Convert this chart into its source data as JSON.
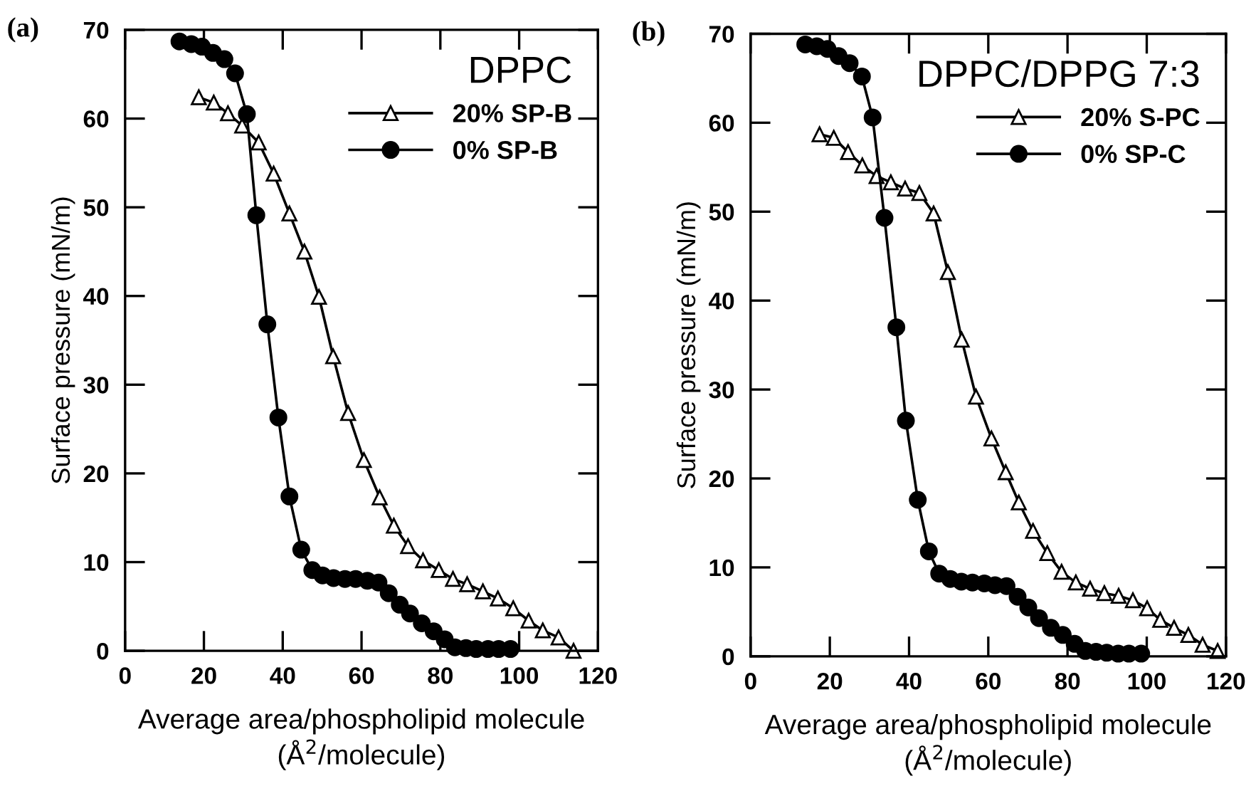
{
  "chart_data": [
    {
      "type": "line",
      "xlabel": "Average area/phospholipid molecule\n(Å$^{2}$/molecule)",
      "ylabel": "Surface pressure (mN/m)",
      "legend_title": "DPPC",
      "legend": "top right",
      "annotations": [
        "(a)"
      ],
      "xlim": [
        0,
        120
      ],
      "xticks": [
        0,
        20,
        40,
        60,
        80,
        100,
        120
      ],
      "ylim": [
        0,
        70
      ],
      "yticks": [
        0,
        10,
        20,
        30,
        40,
        50,
        60,
        70
      ],
      "grid": false,
      "line_style": "solid",
      "series": [
        {
          "name": "20% SP-B",
          "color": "#000000",
          "marker": "triangle",
          "x": [
            18.7,
            22.5,
            26.1,
            29.7,
            33.9,
            37.7,
            41.7,
            45.5,
            49.2,
            52.8,
            56.6,
            60.6,
            64.6,
            68.2,
            71.8,
            75.6,
            79.6,
            83.2,
            86.8,
            90.8,
            94.6,
            98.5,
            102.4,
            106.0,
            110.0,
            113.8
          ],
          "values": [
            62.4,
            61.8,
            60.6,
            59.2,
            57.3,
            53.8,
            49.3,
            45.0,
            39.9,
            33.2,
            26.8,
            21.5,
            17.3,
            14.1,
            11.8,
            10.2,
            9.1,
            8.1,
            7.5,
            6.7,
            5.9,
            4.8,
            3.4,
            2.3,
            1.5,
            0.0
          ]
        },
        {
          "name": "0% SP-B",
          "color": "#000000",
          "marker": "circle",
          "x": [
            13.8,
            16.8,
            19.5,
            22.3,
            25.2,
            27.9,
            30.9,
            33.3,
            36.1,
            38.9,
            41.7,
            44.7,
            47.5,
            50.1,
            52.9,
            55.8,
            58.5,
            61.5,
            64.3,
            66.9,
            69.7,
            72.3,
            75.3,
            78.3,
            81.1,
            83.7,
            86.5,
            89.1,
            92.1,
            94.8,
            97.8
          ],
          "values": [
            68.7,
            68.4,
            68.1,
            67.4,
            66.7,
            65.1,
            60.5,
            49.1,
            36.8,
            26.3,
            17.4,
            11.4,
            9.1,
            8.5,
            8.2,
            8.1,
            8.1,
            7.9,
            7.7,
            6.5,
            5.2,
            4.2,
            3.1,
            2.2,
            1.3,
            0.4,
            0.3,
            0.2,
            0.2,
            0.2,
            0.2
          ]
        }
      ]
    },
    {
      "type": "line",
      "xlabel": "Average area/phospholipid molecule\n(Å$^{2}$/molecule)",
      "ylabel": "Surface pressure (mN/m)",
      "legend_title": "DPPC/DPPG 7:3",
      "legend": "top right",
      "annotations": [
        "(b)"
      ],
      "xlim": [
        0,
        120
      ],
      "xticks": [
        0,
        20,
        40,
        60,
        80,
        100,
        120
      ],
      "ylim": [
        0,
        70
      ],
      "yticks": [
        0,
        10,
        20,
        30,
        40,
        50,
        60,
        70
      ],
      "grid": false,
      "line_style": "solid",
      "series": [
        {
          "name": "20% S-PC",
          "color": "#000000",
          "marker": "triangle",
          "x": [
            17.4,
            21.0,
            24.6,
            28.2,
            31.8,
            35.4,
            39.0,
            42.6,
            46.2,
            49.8,
            53.3,
            56.9,
            60.8,
            64.4,
            67.7,
            71.3,
            74.9,
            78.5,
            82.1,
            85.7,
            89.3,
            92.9,
            96.5,
            100.1,
            103.4,
            106.9,
            110.5,
            114.1,
            117.9
          ],
          "values": [
            58.7,
            58.3,
            56.7,
            55.2,
            54.0,
            53.3,
            52.6,
            52.1,
            49.8,
            43.2,
            35.6,
            29.2,
            24.5,
            20.7,
            17.3,
            14.1,
            11.6,
            9.5,
            8.3,
            7.6,
            7.1,
            6.8,
            6.3,
            5.4,
            4.1,
            3.2,
            2.4,
            1.3,
            0.6
          ]
        },
        {
          "name": "0% SP-C",
          "color": "#000000",
          "marker": "circle",
          "x": [
            13.8,
            16.7,
            19.4,
            22.2,
            25.0,
            28.1,
            30.8,
            33.8,
            36.8,
            39.2,
            42.2,
            45.0,
            47.6,
            50.4,
            53.2,
            56.0,
            59.0,
            61.7,
            64.6,
            67.4,
            70.1,
            72.8,
            75.8,
            78.8,
            81.8,
            84.5,
            87.2,
            89.9,
            92.8,
            95.5,
            98.6
          ],
          "values": [
            68.8,
            68.6,
            68.3,
            67.5,
            66.7,
            65.2,
            60.6,
            49.3,
            37.0,
            26.5,
            17.6,
            11.8,
            9.3,
            8.7,
            8.4,
            8.3,
            8.2,
            8.0,
            7.9,
            6.7,
            5.5,
            4.3,
            3.2,
            2.4,
            1.4,
            0.6,
            0.5,
            0.4,
            0.3,
            0.3,
            0.3
          ]
        }
      ]
    }
  ]
}
